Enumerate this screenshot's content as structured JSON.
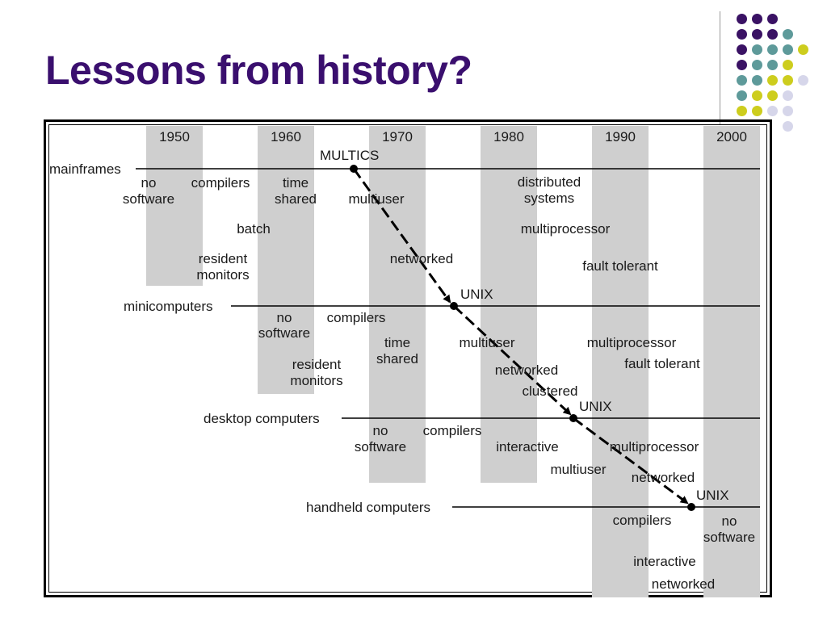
{
  "slide": {
    "title": "Lessons from history?"
  },
  "colors": {
    "title": "#3a0f6e",
    "purple": "#3a1264",
    "teal": "#5e9a9a",
    "yellow": "#cdcd1e",
    "lavender": "#d6d6ea",
    "band": "#cfcfcf"
  },
  "diagram": {
    "years": [
      "1950",
      "1960",
      "1970",
      "1980",
      "1990",
      "2000"
    ],
    "tiers": {
      "mainframes": "mainframes",
      "minicomputers": "minicomputers",
      "desktop": "desktop computers",
      "handheld": "handheld computers"
    },
    "labels": {
      "multics": "MULTICS",
      "mf_no": "no",
      "mf_software": "software",
      "mf_compilers": "compilers",
      "mf_time": "time",
      "mf_shared": "shared",
      "mf_multiuser": "multiuser",
      "mf_distributed": "distributed",
      "mf_systems": "systems",
      "mf_batch": "batch",
      "mf_multiprocessor": "multiprocessor",
      "mf_resident": "resident",
      "mf_monitors": "monitors",
      "mf_networked": "networked",
      "mf_fault_tolerant": "fault tolerant",
      "unix1": "UNIX",
      "mini_no": "no",
      "mini_software": "software",
      "mini_compilers": "compilers",
      "mini_time": "time",
      "mini_shared": "shared",
      "mini_multiuser": "multiuser",
      "mini_multiprocessor": "multiprocessor",
      "mini_fault_tolerant": "fault tolerant",
      "mini_resident": "resident",
      "mini_monitors": "monitors",
      "mini_networked": "networked",
      "mini_clustered": "clustered",
      "unix2": "UNIX",
      "desk_no": "no",
      "desk_software": "software",
      "desk_compilers": "compilers",
      "desk_interactive": "interactive",
      "desk_multiprocessor": "multiprocessor",
      "desk_multiuser": "multiuser",
      "desk_networked": "networked",
      "unix3": "UNIX",
      "hand_compilers": "compilers",
      "hand_no": "no",
      "hand_software": "software",
      "hand_interactive": "interactive",
      "hand_networked": "networked"
    }
  }
}
